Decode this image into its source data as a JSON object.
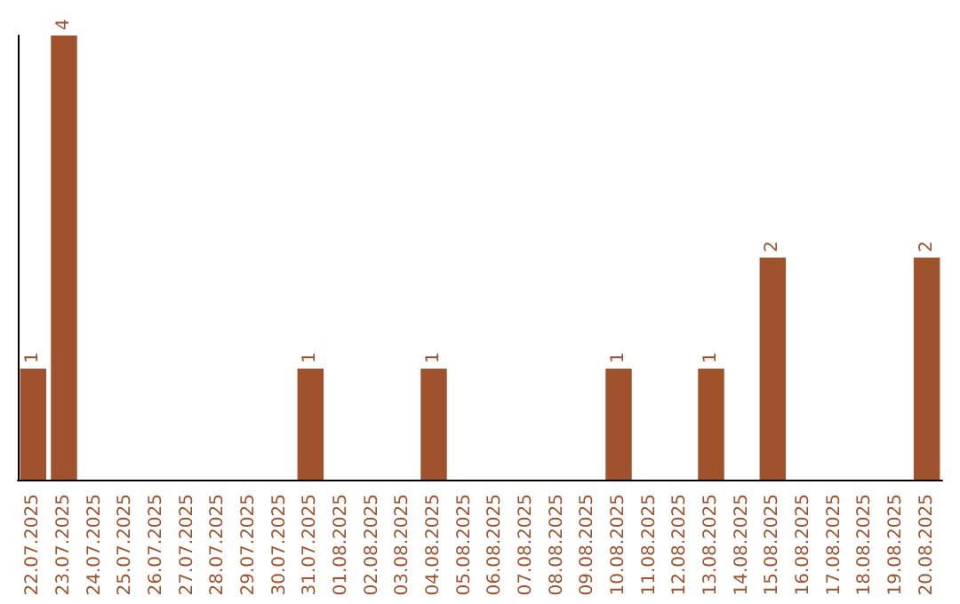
{
  "chart_data": {
    "type": "bar",
    "categories": [
      "22.07.2025",
      "23.07.2025",
      "24.07.2025",
      "25.07.2025",
      "26.07.2025",
      "27.07.2025",
      "28.07.2025",
      "29.07.2025",
      "30.07.2025",
      "31.07.2025",
      "01.08.2025",
      "02.08.2025",
      "03.08.2025",
      "04.08.2025",
      "05.08.2025",
      "06.08.2025",
      "07.08.2025",
      "08.08.2025",
      "09.08.2025",
      "10.08.2025",
      "11.08.2025",
      "12.08.2025",
      "13.08.2025",
      "14.08.2025",
      "15.08.2025",
      "16.08.2025",
      "17.08.2025",
      "18.08.2025",
      "19.08.2025",
      "20.08.2025"
    ],
    "values": [
      1,
      4,
      0,
      0,
      0,
      0,
      0,
      0,
      0,
      1,
      0,
      0,
      0,
      1,
      0,
      0,
      0,
      0,
      0,
      1,
      0,
      0,
      1,
      0,
      2,
      0,
      0,
      0,
      0,
      2
    ],
    "value_labels": [
      "1",
      "4",
      null,
      null,
      null,
      null,
      null,
      null,
      null,
      "1",
      null,
      null,
      null,
      "1",
      null,
      null,
      null,
      null,
      null,
      "1",
      null,
      null,
      "1",
      null,
      "2",
      null,
      null,
      null,
      null,
      "2"
    ],
    "color": "#a0522d",
    "tick_labels": "x",
    "grid": false
  }
}
